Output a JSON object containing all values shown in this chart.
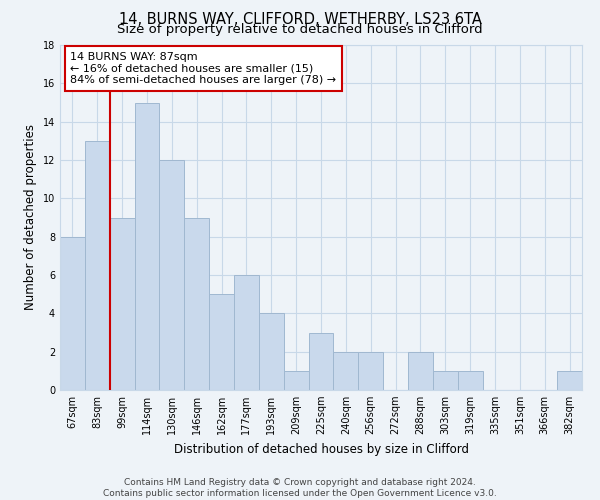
{
  "title1": "14, BURNS WAY, CLIFFORD, WETHERBY, LS23 6TA",
  "title2": "Size of property relative to detached houses in Clifford",
  "xlabel": "Distribution of detached houses by size in Clifford",
  "ylabel": "Number of detached properties",
  "categories": [
    "67sqm",
    "83sqm",
    "99sqm",
    "114sqm",
    "130sqm",
    "146sqm",
    "162sqm",
    "177sqm",
    "193sqm",
    "209sqm",
    "225sqm",
    "240sqm",
    "256sqm",
    "272sqm",
    "288sqm",
    "303sqm",
    "319sqm",
    "335sqm",
    "351sqm",
    "366sqm",
    "382sqm"
  ],
  "values": [
    8,
    13,
    9,
    15,
    12,
    9,
    5,
    6,
    4,
    1,
    3,
    2,
    2,
    0,
    2,
    1,
    1,
    0,
    0,
    0,
    1
  ],
  "bar_color": "#c9d9ec",
  "bar_edge_color": "#a0b8d0",
  "grid_color": "#c8d8e8",
  "background_color": "#eef3f8",
  "plot_bg_color": "#eef3f8",
  "red_line_x": 1.5,
  "annotation_text": "14 BURNS WAY: 87sqm\n← 16% of detached houses are smaller (15)\n84% of semi-detached houses are larger (78) →",
  "annotation_box_facecolor": "white",
  "annotation_box_edgecolor": "#cc0000",
  "ylim": [
    0,
    18
  ],
  "yticks": [
    0,
    2,
    4,
    6,
    8,
    10,
    12,
    14,
    16,
    18
  ],
  "footnote1": "Contains HM Land Registry data © Crown copyright and database right 2024.",
  "footnote2": "Contains public sector information licensed under the Open Government Licence v3.0.",
  "title1_fontsize": 10.5,
  "title2_fontsize": 9.5,
  "tick_fontsize": 7,
  "ylabel_fontsize": 8.5,
  "xlabel_fontsize": 8.5,
  "annot_fontsize": 8,
  "footnote_fontsize": 6.5
}
